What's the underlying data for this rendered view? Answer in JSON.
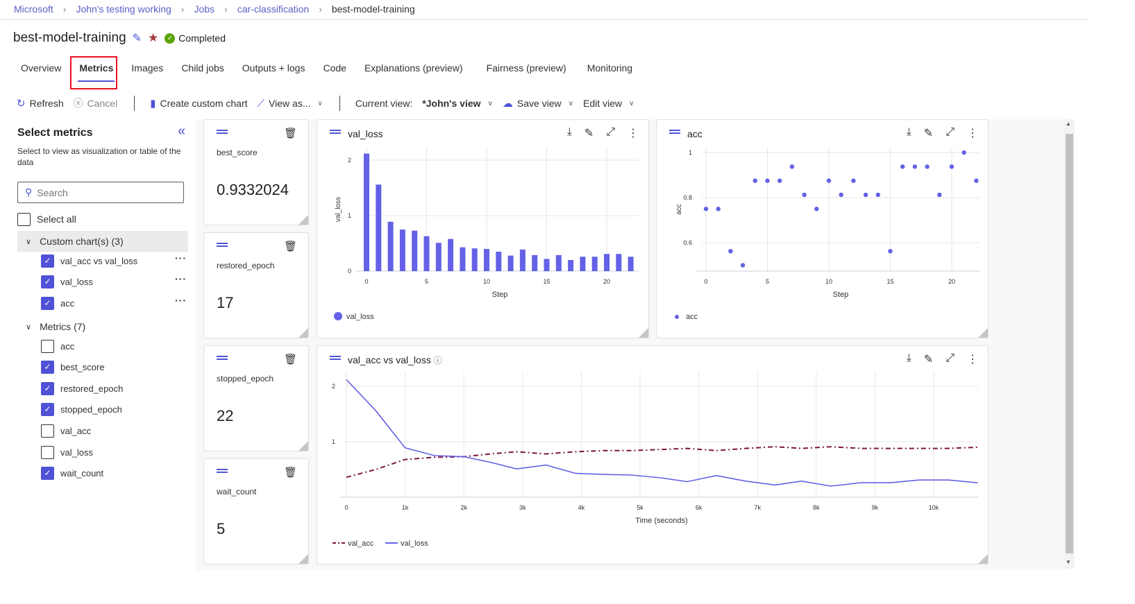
{
  "breadcrumb": [
    "Microsoft",
    "John's testing working",
    "Jobs",
    "car-classification",
    "best-model-training"
  ],
  "header": {
    "title": "best-model-training",
    "status": "Completed",
    "icons": [
      "edit-icon",
      "star-icon",
      "check-circle-icon"
    ]
  },
  "tabs": [
    "Overview",
    "Metrics",
    "Images",
    "Child jobs",
    "Outputs + logs",
    "Code",
    "Explanations (preview)",
    "Fairness (preview)",
    "Monitoring"
  ],
  "active_tab": "Metrics",
  "toolbar": {
    "refresh": "Refresh",
    "cancel": "Cancel",
    "create_chart": "Create custom chart",
    "view_as": "View as...",
    "current_view_label": "Current view:",
    "current_view": "*John's view",
    "save_view": "Save view",
    "edit_view": "Edit view"
  },
  "sidebar": {
    "title": "Select metrics",
    "description": "Select to view as visualization or table of the data",
    "search_placeholder": "Search",
    "select_all": "Select all",
    "groups": [
      {
        "label": "Custom chart(s) (3)",
        "items": [
          {
            "label": "val_acc vs val_loss",
            "checked": true
          },
          {
            "label": "val_loss",
            "checked": true
          },
          {
            "label": "acc",
            "checked": true
          }
        ]
      },
      {
        "label": "Metrics (7)",
        "items": [
          {
            "label": "acc",
            "checked": false
          },
          {
            "label": "best_score",
            "checked": true
          },
          {
            "label": "restored_epoch",
            "checked": true
          },
          {
            "label": "stopped_epoch",
            "checked": true
          },
          {
            "label": "val_acc",
            "checked": false
          },
          {
            "label": "val_loss",
            "checked": false
          },
          {
            "label": "wait_count",
            "checked": true
          }
        ]
      }
    ]
  },
  "metric_cards": [
    {
      "name": "best_score",
      "value": "0.9332024"
    },
    {
      "name": "restored_epoch",
      "value": "17"
    },
    {
      "name": "stopped_epoch",
      "value": "22"
    },
    {
      "name": "wait_count",
      "value": "5"
    }
  ],
  "colors": {
    "accent": "#4f52d6",
    "series_blue": "#6461e6",
    "series_red": "#7a1630"
  },
  "chart_data": [
    {
      "type": "bar",
      "title": "val_loss",
      "xlabel": "Step",
      "ylabel": "val_loss",
      "xticks": [
        0,
        5,
        10,
        15,
        20
      ],
      "yticks": [
        0,
        1,
        2
      ],
      "ylim": [
        0,
        2.2
      ],
      "grid": true,
      "legend": [
        "val_loss"
      ],
      "legend_placement": "bottom-left",
      "x": [
        0,
        1,
        2,
        3,
        4,
        5,
        6,
        7,
        8,
        9,
        10,
        11,
        12,
        13,
        14,
        15,
        16,
        17,
        18,
        19,
        20,
        21,
        22
      ],
      "values": [
        2.12,
        1.56,
        0.89,
        0.75,
        0.73,
        0.63,
        0.51,
        0.58,
        0.43,
        0.41,
        0.4,
        0.35,
        0.28,
        0.39,
        0.29,
        0.22,
        0.29,
        0.2,
        0.26,
        0.26,
        0.31,
        0.31,
        0.26
      ]
    },
    {
      "type": "scatter",
      "title": "acc",
      "xlabel": "Step",
      "ylabel": "acc",
      "xticks": [
        0,
        5,
        10,
        15,
        20
      ],
      "yticks": [
        0.6,
        0.8,
        1
      ],
      "ylim": [
        0.47,
        1.0
      ],
      "grid": true,
      "legend": [
        "acc"
      ],
      "legend_placement": "bottom-left",
      "x": [
        0,
        1,
        2,
        3,
        4,
        5,
        6,
        7,
        8,
        9,
        10,
        11,
        12,
        13,
        14,
        15,
        16,
        17,
        18,
        19,
        20,
        21,
        22
      ],
      "values": [
        0.75,
        0.75,
        0.5625,
        0.5,
        0.875,
        0.875,
        0.875,
        0.9375,
        0.8125,
        0.75,
        0.875,
        0.8125,
        0.875,
        0.8125,
        0.8125,
        0.5625,
        0.9375,
        0.9375,
        0.9375,
        0.8125,
        0.9375,
        1.0,
        0.875
      ]
    },
    {
      "type": "line",
      "title": "val_acc vs val_loss",
      "xlabel": "Time (seconds)",
      "xticks": [
        "0",
        "1k",
        "2k",
        "3k",
        "4k",
        "5k",
        "6k",
        "7k",
        "8k",
        "9k",
        "10k"
      ],
      "yticks": [
        1,
        2
      ],
      "ylim": [
        0,
        2.2
      ],
      "grid": true,
      "legend_placement": "bottom-left",
      "x": [
        0,
        500,
        1000,
        1500,
        2000,
        2450,
        2900,
        3400,
        3900,
        4400,
        4850,
        5350,
        5800,
        6300,
        6800,
        7300,
        7750,
        8250,
        8750,
        9250,
        9750,
        10250,
        10750
      ],
      "series": [
        {
          "name": "val_acc",
          "style": "dashdot",
          "values": [
            0.36,
            0.5,
            0.68,
            0.72,
            0.73,
            0.78,
            0.82,
            0.78,
            0.82,
            0.84,
            0.84,
            0.86,
            0.88,
            0.84,
            0.88,
            0.91,
            0.88,
            0.91,
            0.88,
            0.88,
            0.88,
            0.88,
            0.9
          ]
        },
        {
          "name": "val_loss",
          "style": "solid",
          "values": [
            2.12,
            1.56,
            0.89,
            0.75,
            0.73,
            0.63,
            0.51,
            0.58,
            0.43,
            0.41,
            0.4,
            0.35,
            0.28,
            0.39,
            0.29,
            0.22,
            0.29,
            0.2,
            0.26,
            0.26,
            0.31,
            0.31,
            0.26
          ]
        }
      ]
    }
  ]
}
